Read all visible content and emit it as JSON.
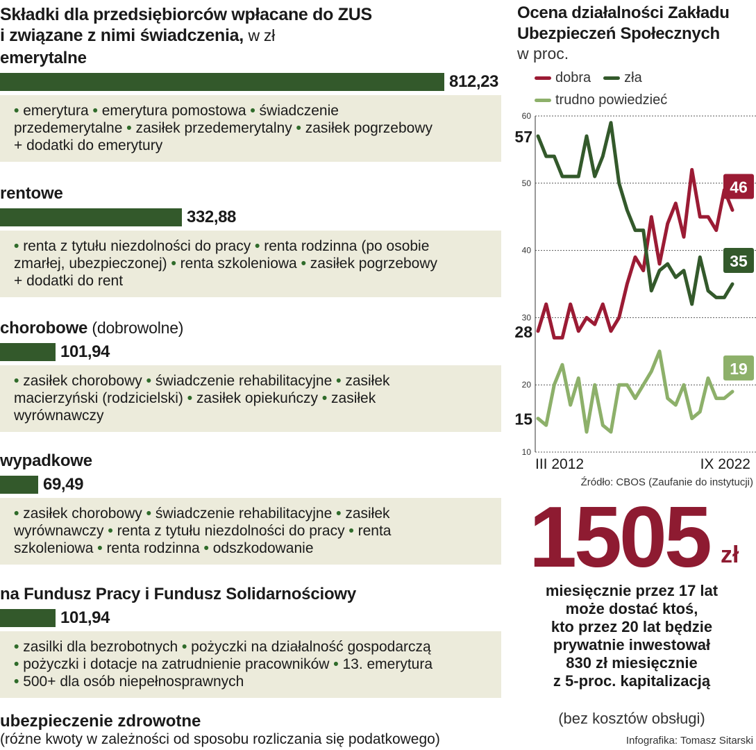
{
  "left": {
    "title_line1": "Składki dla przedsiębiorców wpłacane do ZUS",
    "title_line2": "i związane z nimi świadczenia,",
    "title_unit": "w zł",
    "sections": [
      {
        "title": "emerytalne",
        "value": 812.23,
        "value_label": "812,23",
        "lines": [
          [
            "emerytura",
            "emerytura pomostowa",
            "świadczenie"
          ],
          [
            "",
            "przedemerytalne",
            "zasiłek przedemerytalny",
            "zasiłek pogrzebowy"
          ],
          [
            "",
            "+ dodatki do emerytury"
          ]
        ]
      },
      {
        "title": "rentowe",
        "value": 332.88,
        "value_label": "332,88",
        "lines": [
          [
            "renta z tytułu niezdolności do pracy",
            "renta rodzinna (po osobie"
          ],
          [
            "",
            "zmarłej, ubezpieczonej)",
            "renta szkoleniowa",
            "zasiłek pogrzebowy"
          ],
          [
            "",
            "+ dodatki do rent"
          ]
        ]
      },
      {
        "title": "chorobowe",
        "title_extra": "(dobrowolne)",
        "value": 101.94,
        "value_label": "101,94",
        "lines": [
          [
            "zasiłek chorobowy",
            "świadczenie rehabilitacyjne",
            "zasiłek"
          ],
          [
            "",
            "macierzyński (rodzicielski)",
            "zasiłek opiekuńczy",
            "zasiłek"
          ],
          [
            "",
            "wyrównawczy"
          ]
        ]
      },
      {
        "title": "wypadkowe",
        "value": 69.49,
        "value_label": "69,49",
        "lines": [
          [
            "zasiłek chorobowy",
            "świadczenie rehabilitacyjne",
            "zasiłek"
          ],
          [
            "",
            "wyrównawczy",
            "renta z tytułu niezdolności do pracy",
            "renta"
          ],
          [
            "",
            "szkoleniowa",
            "renta rodzinna",
            "odszkodowanie"
          ]
        ]
      },
      {
        "title": "na Fundusz Pracy i Fundusz Solidarnościowy",
        "value": 101.94,
        "value_label": "101,94",
        "lines": [
          [
            "zasilki dla bezrobotnych",
            "pożyczki na działalność gospodarczą"
          ],
          [
            "pożyczki i dotacje na zatrudnienie pracowników",
            "13. emerytura"
          ],
          [
            "500+ dla osób niepełnosprawnych"
          ]
        ]
      }
    ],
    "health_title": "ubezpieczenie zdrowotne",
    "health_sub": "(różne kwoty w zależności od sposobu rozliczania się podatkowego)"
  },
  "chart_data": {
    "type": "line",
    "title_line1": "Ocena działalności Zakładu",
    "title_line2": "Ubezpieczeń Społecznych",
    "unit": "w proc.",
    "ylim": [
      10,
      60
    ],
    "yticks": [
      10,
      20,
      30,
      40,
      50,
      60
    ],
    "x_start_label": "III 2012",
    "x_end_label": "IX 2022",
    "grid": true,
    "series": [
      {
        "name": "dobra",
        "color": "#9b1b34",
        "values": [
          28,
          32,
          27,
          27,
          32,
          28,
          30,
          29,
          32,
          28,
          30,
          35,
          39,
          37,
          45,
          38,
          44,
          47,
          42,
          52,
          45,
          45,
          43,
          49,
          46
        ],
        "start_label": "28",
        "end_label": "46"
      },
      {
        "name": "zła",
        "color": "#33592b",
        "values": [
          57,
          54,
          54,
          51,
          51,
          51,
          57,
          51,
          54,
          59,
          50,
          46,
          43,
          43,
          34,
          37,
          38,
          36,
          37,
          32,
          39,
          34,
          33,
          33,
          35
        ],
        "start_label": "57",
        "end_label": "35"
      },
      {
        "name": "trudno powiedzieć",
        "color": "#8db06a",
        "values": [
          15,
          14,
          20,
          23,
          17,
          21,
          13,
          20,
          14,
          13,
          20,
          20,
          18,
          20,
          22,
          25,
          18,
          17,
          20,
          15,
          16,
          21,
          18,
          18,
          19
        ],
        "start_label": "15",
        "end_label": "19"
      }
    ],
    "source": "Źródło: CBOS (Zaufanie do instytucji)"
  },
  "callout": {
    "amount": "1505",
    "amount_unit": "zł",
    "text": [
      "miesięcznie przez 17 lat",
      "może dostać ktoś,",
      "kto przez 20 lat będzie",
      "prywatnie inwestował",
      "830 zł miesięcznie",
      "z 5-proc. kapitalizacją"
    ],
    "subtext": "(bez kosztów obsługi)"
  },
  "credit": "Infografika: Tomasz Sitarski"
}
